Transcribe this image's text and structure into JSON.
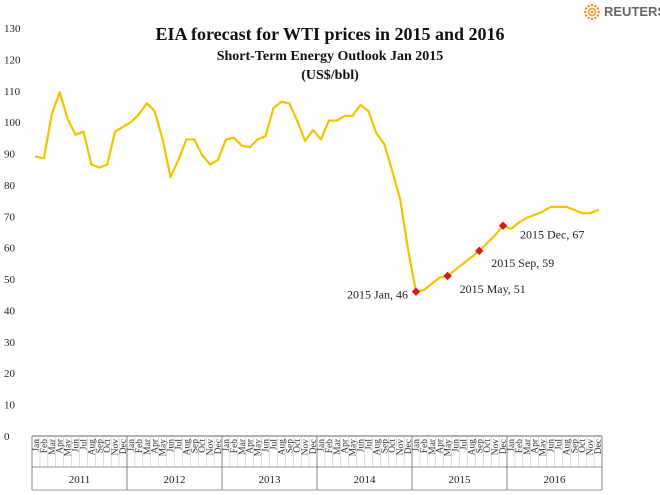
{
  "brand": {
    "name": "REUTERS",
    "color": "#f28c00"
  },
  "chart_data": {
    "type": "line",
    "title": "EIA forecast for WTI prices in 2015 and 2016",
    "subtitle": "Short-Term Energy Outlook Jan 2015",
    "units": "(US$/bbl)",
    "xlabel": "",
    "ylabel": "",
    "ylim": [
      0,
      130
    ],
    "yticks": [
      0,
      10,
      20,
      30,
      40,
      50,
      60,
      70,
      80,
      90,
      100,
      110,
      120,
      130
    ],
    "grid": false,
    "line_color": "#f5c300",
    "marker_color": "#d7191c",
    "months": [
      "Jan",
      "Feb",
      "Mar",
      "Apr",
      "May",
      "Jun",
      "Jul",
      "Aug",
      "Sep",
      "Oct",
      "Nov",
      "Dec"
    ],
    "years": [
      "2011",
      "2012",
      "2013",
      "2014",
      "2015",
      "2016"
    ],
    "values": [
      89,
      88.5,
      102.5,
      109.5,
      101,
      96,
      97,
      86.5,
      85.5,
      86.5,
      97,
      98.5,
      100,
      102.5,
      106,
      103.5,
      94.5,
      82.5,
      88,
      94.5,
      94.5,
      89.5,
      86.5,
      88,
      94.5,
      95,
      92.5,
      92,
      94.5,
      95.5,
      104.5,
      106.5,
      106,
      100.5,
      94,
      97.5,
      94.5,
      100.5,
      100.5,
      102,
      102,
      105.5,
      103.5,
      96.5,
      93,
      84.5,
      75.5,
      59.5,
      46,
      46.5,
      48.5,
      50.5,
      51,
      53,
      55,
      57,
      59,
      61.5,
      64,
      67,
      66,
      68,
      69.5,
      70.5,
      71.5,
      73,
      73,
      73,
      72,
      71,
      71,
      72
    ],
    "annotations": [
      {
        "index": 48,
        "label": "2015 Jan, 46",
        "value": 46
      },
      {
        "index": 52,
        "label": "2015 May, 51",
        "value": 51
      },
      {
        "index": 56,
        "label": "2015 Sep, 59",
        "value": 59
      },
      {
        "index": 59,
        "label": "2015 Dec, 67",
        "value": 67
      }
    ]
  }
}
